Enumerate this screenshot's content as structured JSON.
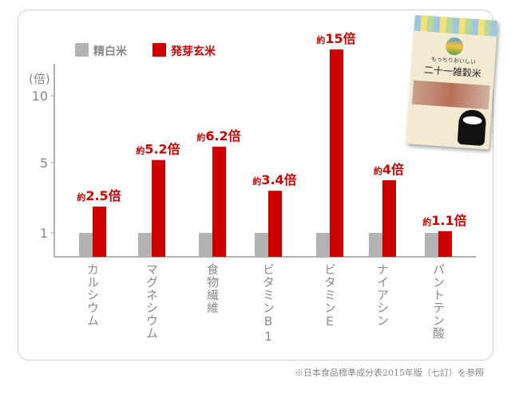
{
  "chart_data": {
    "type": "bar",
    "legend": [
      {
        "name": "精白米",
        "color": "#b3b3b3"
      },
      {
        "name": "発芽玄米",
        "color": "#cc0000"
      }
    ],
    "legend_placement": "top-left",
    "ylabel": "(倍)",
    "yticks": [
      1,
      5,
      10
    ],
    "ylim": [
      0,
      15
    ],
    "categories": [
      "カルシウム",
      "マグネシウム",
      "食物繊維",
      "ビタミンB1",
      "ビタミンE",
      "ナイアシン",
      "パントテン酸"
    ],
    "series": [
      {
        "name": "精白米",
        "values": [
          1,
          1,
          1,
          1,
          1,
          1,
          1
        ]
      },
      {
        "name": "発芽玄米",
        "values": [
          2.5,
          5.2,
          6.2,
          3.4,
          15,
          4,
          1.1
        ]
      }
    ],
    "data_labels": [
      {
        "prefix": "約",
        "value": "2.5",
        "suffix": "倍"
      },
      {
        "prefix": "約",
        "value": "5.2",
        "suffix": "倍"
      },
      {
        "prefix": "約",
        "value": "6.2",
        "suffix": "倍"
      },
      {
        "prefix": "約",
        "value": "3.4",
        "suffix": "倍"
      },
      {
        "prefix": "約",
        "value": "15",
        "suffix": "倍"
      },
      {
        "prefix": "約",
        "value": "4",
        "suffix": "倍"
      },
      {
        "prefix": "約",
        "value": "1.1",
        "suffix": "倍"
      }
    ]
  },
  "product": {
    "tagline": "もっちりおいしい",
    "name": "二十一雑穀米"
  },
  "note": "※日本食品標準成分表2015年版（七訂）を参照"
}
